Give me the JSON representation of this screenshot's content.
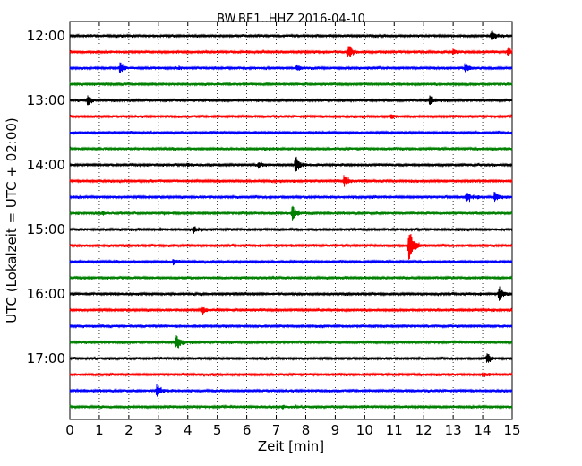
{
  "chart_data": {
    "type": "line",
    "title": "BW.BE1..HHZ 2016-04-10",
    "xlabel": "Zeit  [min]",
    "ylabel": "UTC (Lokalzeit = UTC + 02:00)",
    "xlim": [
      0,
      15
    ],
    "x_ticks": [
      "0",
      "1",
      "2",
      "3",
      "4",
      "5",
      "6",
      "7",
      "8",
      "9",
      "10",
      "11",
      "12",
      "13",
      "14",
      "15"
    ],
    "y_ticks": [
      "12:00",
      "13:00",
      "14:00",
      "15:00",
      "16:00",
      "17:00"
    ],
    "y_start": "12:00",
    "row_minutes": 15,
    "grid": "vertical-dotted",
    "color_cycle": [
      "#000000",
      "#ff0000",
      "#0000ff",
      "#008000"
    ],
    "series": [
      {
        "row_start": "12:00",
        "events": [
          {
            "t": 14.3,
            "amp": 0.45
          }
        ]
      },
      {
        "row_start": "12:15",
        "events": [
          {
            "t": 9.45,
            "amp": 0.55
          },
          {
            "t": 14.85,
            "amp": 0.4
          },
          {
            "t": 13.0,
            "amp": 0.2
          }
        ]
      },
      {
        "row_start": "12:30",
        "events": [
          {
            "t": 1.7,
            "amp": 0.4
          },
          {
            "t": 7.7,
            "amp": 0.25
          },
          {
            "t": 13.4,
            "amp": 0.35
          },
          {
            "t": 3.7,
            "amp": 0.12
          }
        ]
      },
      {
        "row_start": "12:45",
        "events": []
      },
      {
        "row_start": "13:00",
        "events": [
          {
            "t": 0.6,
            "amp": 0.35
          },
          {
            "t": 12.2,
            "amp": 0.45
          }
        ]
      },
      {
        "row_start": "13:15",
        "events": [
          {
            "t": 10.9,
            "amp": 0.15
          }
        ]
      },
      {
        "row_start": "13:30",
        "events": []
      },
      {
        "row_start": "13:45",
        "events": [
          {
            "t": 6.6,
            "amp": 0.1
          }
        ]
      },
      {
        "row_start": "14:00",
        "events": [
          {
            "t": 7.65,
            "amp": 0.8
          },
          {
            "t": 6.4,
            "amp": 0.25
          },
          {
            "t": 4.0,
            "amp": 0.1
          }
        ]
      },
      {
        "row_start": "14:15",
        "events": [
          {
            "t": 9.3,
            "amp": 0.4
          }
        ]
      },
      {
        "row_start": "14:30",
        "events": [
          {
            "t": 13.45,
            "amp": 0.5
          },
          {
            "t": 14.4,
            "amp": 0.4
          }
        ]
      },
      {
        "row_start": "14:45",
        "events": [
          {
            "t": 7.55,
            "amp": 0.55
          },
          {
            "t": 1.1,
            "amp": 0.15
          }
        ]
      },
      {
        "row_start": "15:00",
        "events": [
          {
            "t": 4.2,
            "amp": 0.3
          },
          {
            "t": 3.0,
            "amp": 0.1
          }
        ]
      },
      {
        "row_start": "15:15",
        "events": [
          {
            "t": 11.5,
            "amp": 1.7
          }
        ]
      },
      {
        "row_start": "15:30",
        "events": [
          {
            "t": 3.5,
            "amp": 0.2
          }
        ]
      },
      {
        "row_start": "15:45",
        "events": []
      },
      {
        "row_start": "16:00",
        "events": [
          {
            "t": 14.55,
            "amp": 0.6
          }
        ]
      },
      {
        "row_start": "16:15",
        "events": [
          {
            "t": 4.5,
            "amp": 0.3
          }
        ]
      },
      {
        "row_start": "16:30",
        "events": []
      },
      {
        "row_start": "16:45",
        "events": [
          {
            "t": 3.6,
            "amp": 0.65
          }
        ]
      },
      {
        "row_start": "17:00",
        "events": [
          {
            "t": 14.15,
            "amp": 0.4
          }
        ]
      },
      {
        "row_start": "17:15",
        "events": [
          {
            "t": 14.0,
            "amp": 0.12
          }
        ]
      },
      {
        "row_start": "17:30",
        "events": [
          {
            "t": 2.95,
            "amp": 0.5
          }
        ]
      },
      {
        "row_start": "17:45",
        "events": [
          {
            "t": 7.2,
            "amp": 0.1
          }
        ]
      }
    ]
  }
}
